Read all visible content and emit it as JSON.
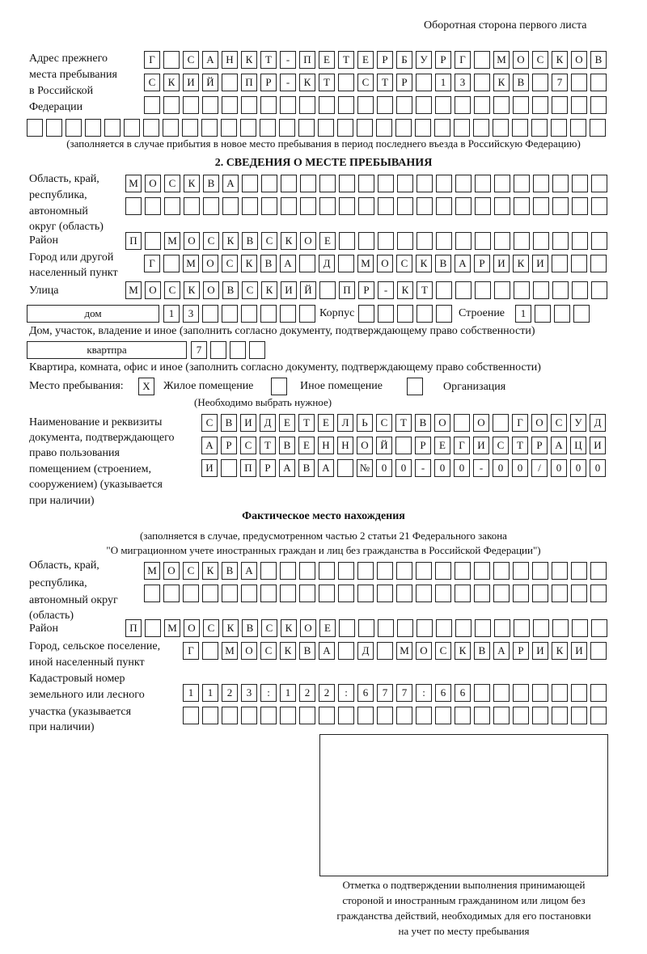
{
  "header": {
    "side_title": "Оборотная сторона первого листа"
  },
  "prev_address": {
    "label": [
      "Адрес прежнего",
      "места пребывания",
      "в Российской",
      "Федерации"
    ],
    "rows": [
      [
        "Г",
        "",
        "С",
        "А",
        "Н",
        "К",
        "Т",
        "-",
        "П",
        "Е",
        "Т",
        "Е",
        "Р",
        "Б",
        "У",
        "Р",
        "Г",
        "",
        "М",
        "О",
        "С",
        "К",
        "О",
        "В"
      ],
      [
        "С",
        "К",
        "И",
        "Й",
        "",
        "П",
        "Р",
        "-",
        "К",
        "Т",
        "",
        "С",
        "Т",
        "Р",
        "",
        "1",
        "3",
        "",
        "К",
        "В",
        "",
        "7",
        "",
        ""
      ],
      [
        "",
        "",
        "",
        "",
        "",
        "",
        "",
        "",
        "",
        "",
        "",
        "",
        "",
        "",
        "",
        "",
        "",
        "",
        "",
        "",
        "",
        "",
        "",
        ""
      ],
      [
        "",
        "",
        "",
        "",
        "",
        "",
        "",
        "",
        "",
        "",
        "",
        "",
        "",
        "",
        "",
        "",
        "",
        "",
        "",
        "",
        "",
        "",
        "",
        "",
        "",
        "",
        "",
        "",
        "",
        ""
      ]
    ],
    "note": "(заполняется в случае прибытия в новое место пребывания в период последнего въезда в Российскую Федерацию)"
  },
  "section2": {
    "title": "2. СВЕДЕНИЯ О МЕСТЕ ПРЕБЫВАНИЯ",
    "region_label": [
      "Область, край,",
      "республика,",
      "автономный",
      "округ (область)"
    ],
    "region_rows": [
      [
        "М",
        "О",
        "С",
        "К",
        "В",
        "А",
        "",
        "",
        "",
        "",
        "",
        "",
        "",
        "",
        "",
        "",
        "",
        "",
        "",
        "",
        "",
        "",
        "",
        "",
        ""
      ],
      [
        "",
        "",
        "",
        "",
        "",
        "",
        "",
        "",
        "",
        "",
        "",
        "",
        "",
        "",
        "",
        "",
        "",
        "",
        "",
        "",
        "",
        "",
        "",
        "",
        ""
      ]
    ],
    "district_label": "Район",
    "district": [
      "П",
      "",
      "М",
      "О",
      "С",
      "К",
      "В",
      "С",
      "К",
      "О",
      "Е",
      "",
      "",
      "",
      "",
      "",
      "",
      "",
      "",
      "",
      "",
      "",
      "",
      "",
      ""
    ],
    "city_label": [
      "Город или другой",
      "населенный пункт"
    ],
    "city": [
      "Г",
      "",
      "М",
      "О",
      "С",
      "К",
      "В",
      "А",
      "",
      "Д",
      "",
      "М",
      "О",
      "С",
      "К",
      "В",
      "А",
      "Р",
      "И",
      "К",
      "И",
      "",
      "",
      ""
    ],
    "street_label": "Улица",
    "street": [
      "М",
      "О",
      "С",
      "К",
      "О",
      "В",
      "С",
      "К",
      "И",
      "Й",
      "",
      "П",
      "Р",
      "-",
      "К",
      "Т",
      "",
      "",
      "",
      "",
      "",
      "",
      "",
      "",
      ""
    ],
    "house_type": "дом",
    "house": [
      "1",
      "3",
      "",
      "",
      "",
      "",
      "",
      ""
    ],
    "korpus_label": "Корпус",
    "korpus": [
      "",
      "",
      "",
      "",
      ""
    ],
    "stroenie_label": "Строение",
    "stroenie": [
      "1",
      "",
      "",
      ""
    ],
    "house_note": "Дом, участок, владение и иное (заполнить согласно документу, подтверждающему право собственности)",
    "flat_type": "квартпра",
    "flat": [
      "7",
      "",
      "",
      ""
    ],
    "flat_note": "Квартира, комната, офис и иное (заполнить согласно документу, подтверждающему право собственности)",
    "stay_label": "Место пребывания:",
    "stay_options": [
      {
        "label": "Жилое помещение",
        "mark": "Х"
      },
      {
        "label": "Иное помещение",
        "mark": ""
      },
      {
        "label": "Организация",
        "mark": ""
      }
    ],
    "stay_note": "(Необходимо выбрать нужное)",
    "doc_label": [
      "Наименование и реквизиты",
      "документа, подтверждающего",
      "право пользования",
      "помещением (строением,",
      "сооружением) (указывается",
      "при наличии)"
    ],
    "doc_rows": [
      [
        "С",
        "В",
        "И",
        "Д",
        "Е",
        "Т",
        "Е",
        "Л",
        "Ь",
        "С",
        "Т",
        "В",
        "О",
        "",
        "О",
        "",
        "Г",
        "О",
        "С",
        "У",
        "Д"
      ],
      [
        "А",
        "Р",
        "С",
        "Т",
        "В",
        "Е",
        "Н",
        "Н",
        "О",
        "Й",
        "",
        "Р",
        "Е",
        "Г",
        "И",
        "С",
        "Т",
        "Р",
        "А",
        "Ц",
        "И"
      ],
      [
        "И",
        "",
        "П",
        "Р",
        "А",
        "В",
        "А",
        "",
        "№",
        "0",
        "0",
        "-",
        "0",
        "0",
        "-",
        "0",
        "0",
        "/",
        "0",
        "0",
        "0"
      ]
    ]
  },
  "actual": {
    "title": "Фактическое место нахождения",
    "note1": "(заполняется в случае, предусмотренном частью 2 статьи 21 Федерального закона",
    "note2": "\"О миграционном учете иностранных граждан и лиц без гражданства в Российской Федерации\")",
    "region_label": [
      "Область, край,",
      "республика,",
      "автономный округ",
      "(область)"
    ],
    "region_rows": [
      [
        "М",
        "О",
        "С",
        "К",
        "В",
        "А",
        "",
        "",
        "",
        "",
        "",
        "",
        "",
        "",
        "",
        "",
        "",
        "",
        "",
        "",
        "",
        "",
        "",
        ""
      ],
      [
        "",
        "",
        "",
        "",
        "",
        "",
        "",
        "",
        "",
        "",
        "",
        "",
        "",
        "",
        "",
        "",
        "",
        "",
        "",
        "",
        "",
        "",
        "",
        ""
      ]
    ],
    "district_label": "Район",
    "district": [
      "П",
      "",
      "М",
      "О",
      "С",
      "К",
      "В",
      "С",
      "К",
      "О",
      "Е",
      "",
      "",
      "",
      "",
      "",
      "",
      "",
      "",
      "",
      "",
      "",
      "",
      "",
      ""
    ],
    "city_label": [
      "Город, сельское поселение,",
      "иной населенный пункт"
    ],
    "city": [
      "Г",
      "",
      "М",
      "О",
      "С",
      "К",
      "В",
      "А",
      "",
      "Д",
      "",
      "М",
      "О",
      "С",
      "К",
      "В",
      "А",
      "Р",
      "И",
      "К",
      "И",
      ""
    ],
    "cadastre_label": [
      "Кадастровый номер",
      "земельного или лесного",
      "участка (указывается",
      "при наличии)"
    ],
    "cadastre_rows": [
      [
        "1",
        "1",
        "2",
        "3",
        ":",
        "1",
        "2",
        "2",
        ":",
        "6",
        "7",
        "7",
        ":",
        "6",
        "6",
        "",
        "",
        "",
        "",
        "",
        "",
        ""
      ],
      [
        "",
        "",
        "",
        "",
        "",
        "",
        "",
        "",
        "",
        "",
        "",
        "",
        "",
        "",
        "",
        "",
        "",
        "",
        "",
        "",
        "",
        ""
      ]
    ]
  },
  "stamp": {
    "caption": [
      "Отметка о подтверждении выполнения принимающей",
      "стороной и иностранным гражданином или лицом без",
      "гражданства действий, необходимых для его постановки",
      "на учет по месту пребывания"
    ]
  }
}
